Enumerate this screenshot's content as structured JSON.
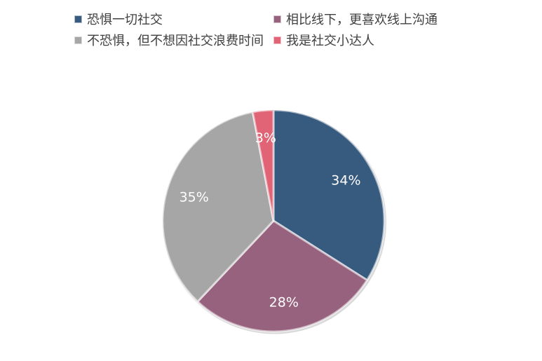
{
  "chart_data": {
    "type": "pie",
    "title": "",
    "categories": [
      "恐惧一切社交",
      "相比线下，更喜欢线上沟通",
      "不恐惧，但不想因社交浪费时间",
      "我是社交小达人"
    ],
    "values": [
      34,
      28,
      35,
      3
    ],
    "value_labels": [
      "34%",
      "28%",
      "35%",
      "3%"
    ],
    "colors": [
      "#375A7F",
      "#97627E",
      "#A6A6A6",
      "#E06376"
    ],
    "legend_position": "top",
    "start_angle_deg": 0,
    "direction": "clockwise"
  }
}
